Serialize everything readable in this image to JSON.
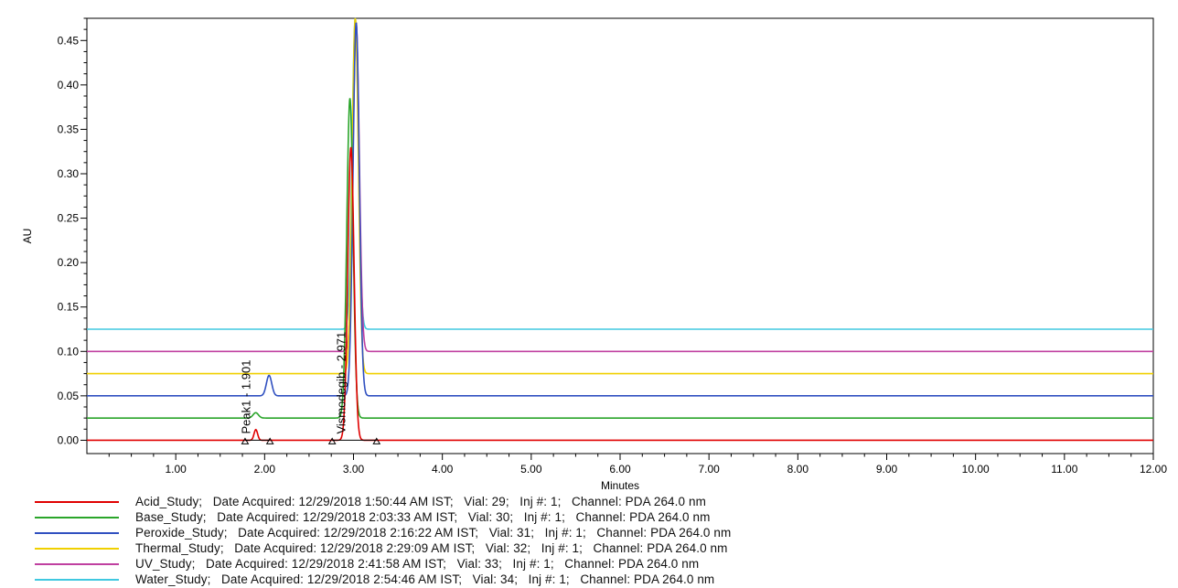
{
  "chart_data": {
    "type": "line",
    "xlabel": "Minutes",
    "ylabel": "AU",
    "xlim": [
      0,
      12
    ],
    "ylim": [
      -0.015,
      0.475
    ],
    "x_ticks": [
      "1.00",
      "2.00",
      "3.00",
      "4.00",
      "5.00",
      "6.00",
      "7.00",
      "8.00",
      "9.00",
      "10.00",
      "11.00",
      "12.00"
    ],
    "y_ticks": [
      "0.00",
      "0.05",
      "0.10",
      "0.15",
      "0.20",
      "0.25",
      "0.30",
      "0.35",
      "0.40",
      "0.45"
    ],
    "grid": false,
    "legend_position": "bottom",
    "series": [
      {
        "name": "Acid_Study;   Date Acquired: 12/29/2018 1:50:44 AM IST;   Vial: 29;   Inj #: 1;   Channel: PDA 264.0 nm",
        "color": "#e00000",
        "baseline": 0.0,
        "peaks": [
          {
            "x": 1.901,
            "height": 0.012,
            "width": 0.02
          },
          {
            "x": 2.971,
            "height": 0.33,
            "width": 0.035
          }
        ]
      },
      {
        "name": "Base_Study;   Date Acquired: 12/29/2018 2:03:33 AM IST;   Vial: 30;   Inj #: 1;   Channel: PDA 264.0 nm",
        "color": "#2aa52a",
        "baseline": 0.025,
        "peaks": [
          {
            "x": 1.9,
            "height": 0.006,
            "width": 0.03
          },
          {
            "x": 2.96,
            "height": 0.36,
            "width": 0.035
          }
        ]
      },
      {
        "name": "Peroxide_Study;   Date Acquired: 12/29/2018 2:16:22 AM IST;   Vial: 31;   Inj #: 1;   Channel: PDA 264.0 nm",
        "color": "#3050c0",
        "baseline": 0.05,
        "peaks": [
          {
            "x": 2.05,
            "height": 0.023,
            "width": 0.03
          },
          {
            "x": 3.03,
            "height": 0.42,
            "width": 0.035
          }
        ]
      },
      {
        "name": "Thermal_Study;   Date Acquired: 12/29/2018 2:29:09 AM IST;   Vial: 32;   Inj #: 1;   Channel: PDA 264.0 nm",
        "color": "#f0d000",
        "baseline": 0.075,
        "peaks": [
          {
            "x": 3.02,
            "height": 0.4,
            "width": 0.035
          }
        ]
      },
      {
        "name": "UV_Study;   Date Acquired: 12/29/2018 2:41:58 AM IST;   Vial: 33;   Inj #: 1;   Channel: PDA 264.0 nm",
        "color": "#c040a0",
        "baseline": 0.1,
        "peaks": [
          {
            "x": 3.03,
            "height": 0.37,
            "width": 0.035
          }
        ]
      },
      {
        "name": "Water_Study;   Date Acquired: 12/29/2018 2:54:46 AM IST;   Vial: 34;   Inj #: 1;   Channel: PDA 264.0 nm",
        "color": "#40c8e0",
        "baseline": 0.125,
        "peaks": [
          {
            "x": 3.02,
            "height": 0.35,
            "width": 0.035
          }
        ]
      }
    ],
    "annotations": [
      {
        "text": "Peak1 - 1.901",
        "x": 1.901,
        "y": 0.003
      },
      {
        "text": "Vismodegib - 2.971",
        "x": 2.971,
        "y": 0.003
      }
    ],
    "integration_markers": [
      {
        "series": 0,
        "x_start": 1.78,
        "x_end": 2.06
      },
      {
        "series": 0,
        "x_start": 2.76,
        "x_end": 3.26
      }
    ]
  }
}
